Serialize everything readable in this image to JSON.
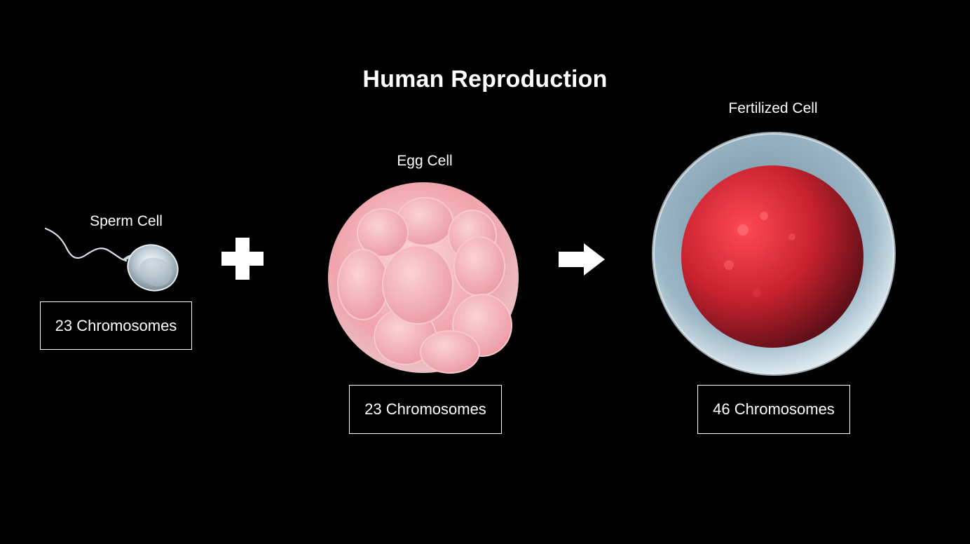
{
  "title": "Human Reproduction",
  "sperm": {
    "label": "Sperm Cell",
    "chromosomes": "23 Chromosomes"
  },
  "egg": {
    "label": "Egg Cell",
    "chromosomes": "23 Chromosomes"
  },
  "fertilized": {
    "label": "Fertilized Cell",
    "chromosomes": "46 Chromosomes"
  },
  "icons": {
    "plus": "plus-icon",
    "arrow": "arrow-right-icon"
  },
  "colors": {
    "background": "#000000",
    "text": "#ffffff",
    "sperm": "#c9d6de",
    "egg": "#f2a6ad",
    "fertilized_core": "#c8222f",
    "fertilized_shell": "#a9c4d2"
  }
}
